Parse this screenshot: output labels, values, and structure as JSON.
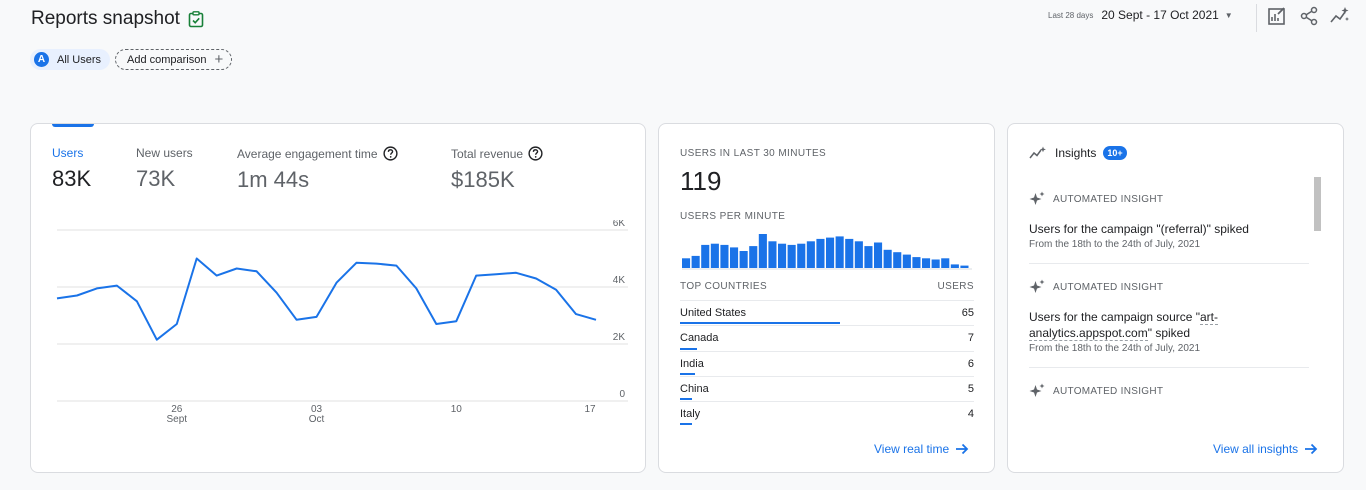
{
  "header": {
    "title": "Reports snapshot",
    "comparisons": {
      "all_users_badge": "A",
      "all_users_label": "All Users",
      "add_label": "Add comparison"
    },
    "date_range": {
      "preset": "Last 28 days",
      "range": "20 Sept - 17 Oct 2021"
    },
    "toolbar_icons": [
      "customize-report-icon",
      "share-icon",
      "insights-icon"
    ]
  },
  "overview": {
    "metrics": [
      {
        "label": "Users",
        "value": "83K"
      },
      {
        "label": "New users",
        "value": "73K"
      },
      {
        "label": "Average engagement time",
        "value": "1m 44s"
      },
      {
        "label": "Total revenue",
        "value": "$185K"
      }
    ],
    "chart_data": {
      "type": "line",
      "series": [
        {
          "values": [
            3600,
            3700,
            3950,
            4050,
            3500,
            2150,
            2700,
            5000,
            4400,
            4650,
            4550,
            3800,
            2850,
            2950,
            4150,
            4850,
            4820,
            4750,
            3950,
            2700,
            2800,
            4400,
            4450,
            4500,
            4300,
            3900,
            3050,
            2850
          ]
        }
      ],
      "x_ticks": [
        {
          "day": "26",
          "month": "Sept"
        },
        {
          "day": "03",
          "month": "Oct"
        },
        {
          "day": "10",
          "month": ""
        },
        {
          "day": "17",
          "month": ""
        }
      ],
      "y_ticks": [
        "6K",
        "4K",
        "2K",
        "0"
      ],
      "ylim": [
        0,
        6000
      ],
      "grid": true,
      "colors": {
        "line": "#1a73e8"
      }
    }
  },
  "realtime": {
    "heading": "USERS IN LAST 30 MINUTES",
    "value": "119",
    "per_minute_heading": "USERS PER MINUTE",
    "per_minute": [
      8,
      10,
      19,
      20,
      19,
      17,
      14,
      18,
      28,
      22,
      20,
      19,
      20,
      22,
      24,
      25,
      26,
      24,
      22,
      18,
      21,
      15,
      13,
      11,
      9,
      8,
      7,
      8,
      3,
      2
    ],
    "table_headers": {
      "country": "TOP COUNTRIES",
      "users": "USERS"
    },
    "countries": [
      {
        "name": "United States",
        "users": 65
      },
      {
        "name": "Canada",
        "users": 7
      },
      {
        "name": "India",
        "users": 6
      },
      {
        "name": "China",
        "users": 5
      },
      {
        "name": "Italy",
        "users": 4
      }
    ],
    "link": "View real time"
  },
  "insights": {
    "heading": "Insights",
    "badge": "10+",
    "items": [
      {
        "tag": "AUTOMATED INSIGHT",
        "title": "Users for the campaign \"(referral)\" spiked",
        "sub": "From the 18th to the 24th of July, 2021"
      },
      {
        "tag": "AUTOMATED INSIGHT",
        "title_pre": "Users for the campaign source \"",
        "title_link": "art-analytics.appspot.com",
        "title_post": "\" spiked",
        "sub": "From the 18th to the 24th of July, 2021"
      },
      {
        "tag": "AUTOMATED INSIGHT"
      }
    ],
    "link": "View all insights"
  },
  "colors": {
    "accent": "#1a73e8",
    "text": "#202124",
    "muted": "#5f6368",
    "border": "#dadce0",
    "verified": "#188038"
  }
}
